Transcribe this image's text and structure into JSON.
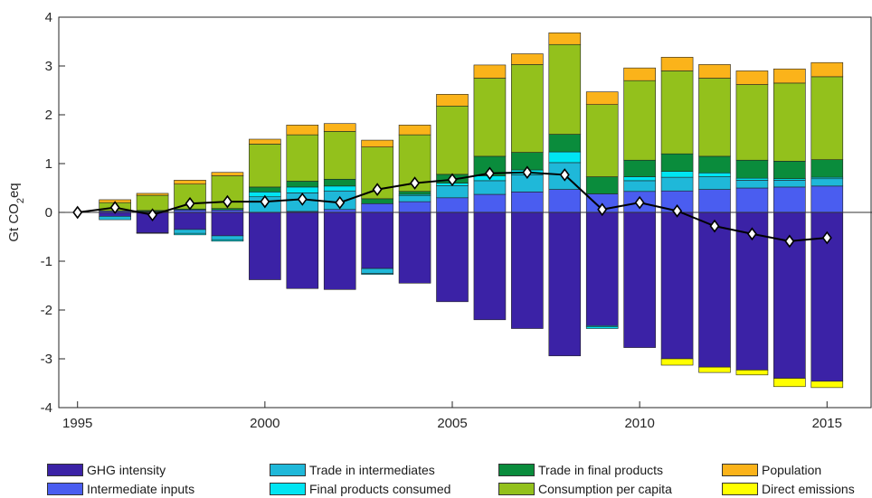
{
  "chart_data": {
    "type": "bar",
    "stacked": true,
    "ylabel": "Gt CO2eq",
    "ylim": [
      -4,
      4
    ],
    "yticks": [
      "-4",
      "-3",
      "-2",
      "-1",
      "0",
      "1",
      "2",
      "3",
      "4"
    ],
    "xlim": [
      1994.5,
      2016.2
    ],
    "xticks": [
      "1995",
      "2000",
      "2005",
      "2010",
      "2015"
    ],
    "x": [
      1996,
      1997,
      1998,
      1999,
      2000,
      2001,
      2002,
      2003,
      2004,
      2005,
      2006,
      2007,
      2008,
      2009,
      2010,
      2011,
      2012,
      2013,
      2014,
      2015
    ],
    "series": [
      {
        "name": "GHG intensity",
        "color": "#3b22a6",
        "values": [
          -0.08,
          -0.42,
          -0.35,
          -0.48,
          -1.38,
          -1.56,
          -1.58,
          -1.15,
          -1.45,
          -1.83,
          -2.2,
          -2.38,
          -2.94,
          -2.32,
          -2.77,
          -3.0,
          -3.17,
          -3.23,
          -3.4,
          -3.46
        ]
      },
      {
        "name": "Intermediate inputs",
        "color": "#4a5df0",
        "values": [
          0.03,
          -0.01,
          0.05,
          0.05,
          0.0,
          0.02,
          0.06,
          0.18,
          0.22,
          0.3,
          0.37,
          0.42,
          0.47,
          0.38,
          0.43,
          0.44,
          0.47,
          0.5,
          0.52,
          0.54
        ]
      },
      {
        "name": "Trade in intermediates",
        "color": "#1fb8d9",
        "values": [
          -0.07,
          0.01,
          -0.08,
          -0.08,
          0.32,
          0.38,
          0.38,
          -0.1,
          0.12,
          0.25,
          0.28,
          0.35,
          0.55,
          -0.02,
          0.22,
          0.28,
          0.26,
          0.16,
          0.14,
          0.15
        ]
      },
      {
        "name": "Final products consumed",
        "color": "#00e5f2",
        "values": [
          0.0,
          0.01,
          -0.03,
          -0.03,
          0.1,
          0.12,
          0.1,
          -0.02,
          0.03,
          0.05,
          0.1,
          0.1,
          0.22,
          -0.04,
          0.08,
          0.12,
          0.08,
          0.04,
          0.03,
          0.03
        ]
      },
      {
        "name": "Trade in final products",
        "color": "#0a8c3c",
        "values": [
          0.0,
          0.02,
          0.02,
          0.03,
          0.1,
          0.12,
          0.14,
          0.1,
          0.06,
          0.18,
          0.4,
          0.36,
          0.36,
          0.35,
          0.34,
          0.36,
          0.34,
          0.37,
          0.36,
          0.36
        ]
      },
      {
        "name": "Consumption per capita",
        "color": "#93c11c",
        "values": [
          0.17,
          0.31,
          0.51,
          0.67,
          0.88,
          0.95,
          0.98,
          1.06,
          1.16,
          1.4,
          1.6,
          1.8,
          1.84,
          1.48,
          1.63,
          1.7,
          1.6,
          1.55,
          1.6,
          1.7
        ]
      },
      {
        "name": "Population",
        "color": "#fbb31a",
        "values": [
          0.06,
          0.04,
          0.08,
          0.07,
          0.1,
          0.2,
          0.16,
          0.14,
          0.2,
          0.24,
          0.27,
          0.22,
          0.24,
          0.26,
          0.26,
          0.28,
          0.28,
          0.28,
          0.29,
          0.29
        ]
      },
      {
        "name": "Direct emissions",
        "color": "#ffff00",
        "values": [
          0.0,
          0.0,
          0.0,
          0.0,
          0.0,
          0.0,
          0.0,
          0.0,
          0.0,
          0.0,
          0.0,
          0.0,
          0.0,
          0.0,
          0.0,
          -0.13,
          -0.11,
          -0.1,
          -0.17,
          -0.13
        ]
      }
    ],
    "line": {
      "x": [
        1995,
        1996,
        1997,
        1998,
        1999,
        2000,
        2001,
        2002,
        2003,
        2004,
        2005,
        2006,
        2007,
        2008,
        2009,
        2010,
        2011,
        2012,
        2013,
        2014,
        2015
      ],
      "values": [
        0.0,
        0.1,
        -0.05,
        0.18,
        0.22,
        0.22,
        0.27,
        0.2,
        0.47,
        0.6,
        0.67,
        0.8,
        0.82,
        0.77,
        0.06,
        0.2,
        0.03,
        -0.28,
        -0.44,
        -0.59,
        -0.52
      ],
      "color": "#000000",
      "marker": "diamond"
    },
    "legend_position": "bottom",
    "grid": false
  }
}
